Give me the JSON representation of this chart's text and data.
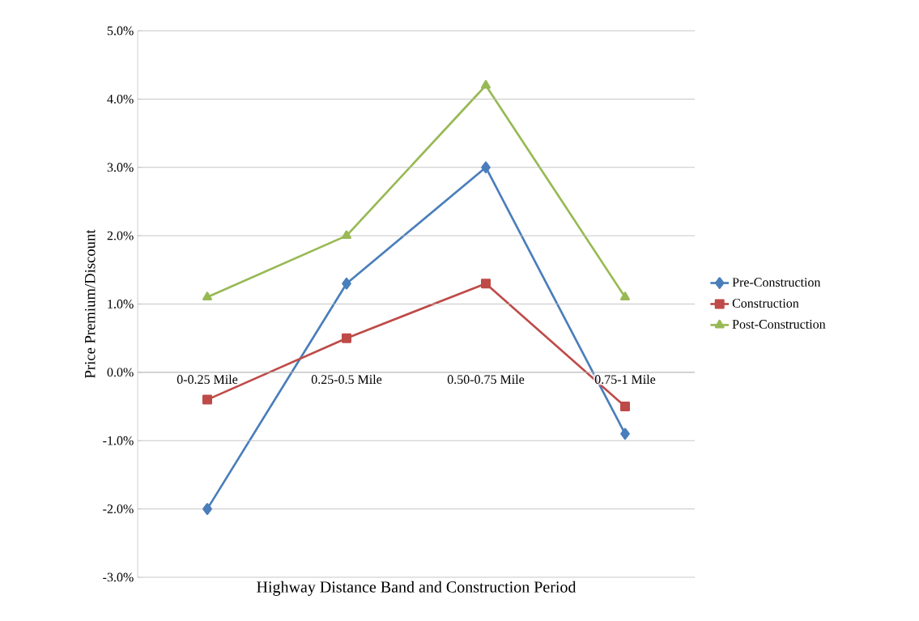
{
  "chart_data": {
    "type": "line",
    "xlabel": "Highway Distance Band and Construction Period",
    "ylabel": "Price Premium/Discount",
    "categories": [
      "0-0.25 Mile",
      "0.25-0.5 Mile",
      "0.50-0.75 Mile",
      "0.75-1 Mile"
    ],
    "series": [
      {
        "name": "Pre-Construction",
        "color": "#4a7ebb",
        "marker": "diamond",
        "values": [
          -2.0,
          1.3,
          3.0,
          -0.9
        ]
      },
      {
        "name": "Construction",
        "color": "#be4b48",
        "marker": "square",
        "values": [
          -0.4,
          0.5,
          1.3,
          -0.5
        ]
      },
      {
        "name": "Post-Construction",
        "color": "#98b954",
        "marker": "triangle",
        "values": [
          1.1,
          2.0,
          4.2,
          1.1
        ]
      }
    ],
    "ylim": [
      -3,
      5
    ],
    "yticks": [
      {
        "value": -3,
        "label": "-3.0%"
      },
      {
        "value": -2,
        "label": "-2.0%"
      },
      {
        "value": -1,
        "label": "-1.0%"
      },
      {
        "value": 0,
        "label": "0.0%"
      },
      {
        "value": 1,
        "label": "1.0%"
      },
      {
        "value": 2,
        "label": "2.0%"
      },
      {
        "value": 3,
        "label": "3.0%"
      },
      {
        "value": 4,
        "label": "4.0%"
      },
      {
        "value": 5,
        "label": "5.0%"
      }
    ],
    "grid": "y",
    "legend": "right",
    "line_style": "solid"
  }
}
